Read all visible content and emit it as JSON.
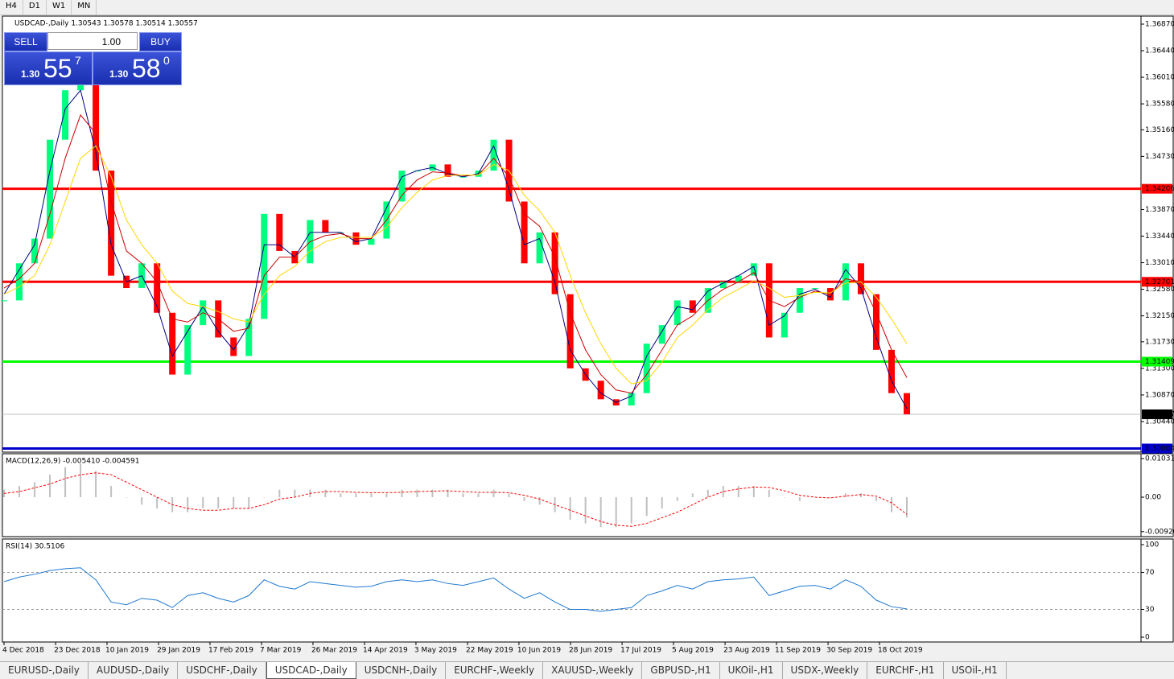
{
  "toolbar": [
    "H4",
    "D1",
    "W1",
    "MN"
  ],
  "trade_panel": {
    "sell": "SELL",
    "buy": "BUY",
    "lots": "1.00",
    "sell_big": "1.30",
    "sell_pips": "55",
    "sell_frac": "7",
    "buy_big": "1.30",
    "buy_pips": "58",
    "buy_frac": "0"
  },
  "tabs": [
    "EURUSD-,Daily",
    "AUDUSD-,Daily",
    "USDCHF-,Daily",
    "USDCAD-,Daily",
    "USDCNH-,Daily",
    "EURCHF-,Weekly",
    "XAUUSD-,Weekly",
    "GBPUSD-,H1",
    "UKOil-,H1",
    "USDX-,Weekly",
    "EURCHF-,H1",
    "USOil-,H1"
  ],
  "active_tab": "USDCAD-,Daily",
  "chart_data": [
    {
      "type": "candlestick",
      "title": "USDCAD-,Daily  1.30543 1.30578 1.30514 1.30557",
      "up_color": "#00ff7f",
      "down_color": "#ff0000",
      "xlim": [
        0,
        59
      ],
      "xticks": [
        {
          "value": 0,
          "label": "4 Dec 2018"
        },
        {
          "value": 3.37,
          "label": "23 Dec 2018"
        },
        {
          "value": 6.73,
          "label": "10 Jan 2019"
        },
        {
          "value": 10.1,
          "label": "29 Jan 2019"
        },
        {
          "value": 13.46,
          "label": "17 Feb 2019"
        },
        {
          "value": 16.83,
          "label": "7 Mar 2019"
        },
        {
          "value": 20.19,
          "label": "26 Mar 2019"
        },
        {
          "value": 23.56,
          "label": "14 Apr 2019"
        },
        {
          "value": 26.92,
          "label": "3 May 2019"
        },
        {
          "value": 30.29,
          "label": "22 May 2019"
        },
        {
          "value": 33.65,
          "label": "10 Jun 2019"
        },
        {
          "value": 37.02,
          "label": "28 Jun 2019"
        },
        {
          "value": 40.39,
          "label": "17 Jul 2019"
        },
        {
          "value": 43.75,
          "label": "5 Aug 2019"
        },
        {
          "value": 47.12,
          "label": "23 Aug 2019"
        },
        {
          "value": 50.48,
          "label": "11 Sep 2019"
        },
        {
          "value": 53.85,
          "label": "30 Sep 2019"
        },
        {
          "value": 57.21,
          "label": "18 Oct 2019"
        }
      ],
      "ylim": [
        1.29945,
        1.37
      ],
      "yticks": [
        {
          "value": 1.3687,
          "label": "1.36870"
        },
        {
          "value": 1.3644,
          "label": "1.36440"
        },
        {
          "value": 1.3601,
          "label": "1.36010"
        },
        {
          "value": 1.3558,
          "label": "1.35580"
        },
        {
          "value": 1.3516,
          "label": "1.35160"
        },
        {
          "value": 1.3473,
          "label": "1.34730"
        },
        {
          "value": 1.3387,
          "label": "1.33870"
        },
        {
          "value": 1.3344,
          "label": "1.33440"
        },
        {
          "value": 1.3301,
          "label": "1.33010"
        },
        {
          "value": 1.3258,
          "label": "1.32580"
        },
        {
          "value": 1.3215,
          "label": "1.32150"
        },
        {
          "value": 1.3173,
          "label": "1.31730"
        },
        {
          "value": 1.313,
          "label": "1.31300"
        },
        {
          "value": 1.3087,
          "label": "1.30870"
        },
        {
          "value": 1.3044,
          "label": "1.30440"
        }
      ],
      "hlines": [
        {
          "value": 1.34206,
          "color": "#ff0000"
        },
        {
          "value": 1.32701,
          "color": "#ff0000"
        },
        {
          "value": 1.31409,
          "color": "#00ff00"
        },
        {
          "value": 1.30004,
          "color": "#0000cc"
        },
        {
          "value": 1.30557,
          "color": "#c0c0c0"
        }
      ],
      "close": [
        1.324,
        1.33,
        1.334,
        1.35,
        1.358,
        1.36,
        1.345,
        1.328,
        1.326,
        1.33,
        1.322,
        1.312,
        1.32,
        1.324,
        1.318,
        1.315,
        1.321,
        1.338,
        1.332,
        1.33,
        1.337,
        1.335,
        1.335,
        1.333,
        1.334,
        1.34,
        1.345,
        1.345,
        1.346,
        1.344,
        1.344,
        1.345,
        1.35,
        1.34,
        1.33,
        1.335,
        1.325,
        1.313,
        1.311,
        1.308,
        1.307,
        1.309,
        1.317,
        1.32,
        1.324,
        1.322,
        1.326,
        1.327,
        1.328,
        1.33,
        1.318,
        1.322,
        1.326,
        1.326,
        1.324,
        1.33,
        1.325,
        1.316,
        1.309,
        1.30557
      ],
      "series": [
        {
          "color": "#000080",
          "values": [
            1.325,
            1.329,
            1.333,
            1.345,
            1.355,
            1.358,
            1.348,
            1.333,
            1.327,
            1.328,
            1.323,
            1.315,
            1.319,
            1.323,
            1.319,
            1.316,
            1.32,
            1.333,
            1.333,
            1.331,
            1.335,
            1.335,
            1.335,
            1.3335,
            1.334,
            1.339,
            1.344,
            1.345,
            1.3455,
            1.3445,
            1.344,
            1.3445,
            1.349,
            1.342,
            1.333,
            1.334,
            1.327,
            1.316,
            1.312,
            1.309,
            1.3075,
            1.3085,
            1.315,
            1.319,
            1.323,
            1.3225,
            1.3255,
            1.3268,
            1.328,
            1.3295,
            1.32,
            1.3215,
            1.325,
            1.3258,
            1.3245,
            1.329,
            1.326,
            1.318,
            1.311,
            1.3065
          ]
        },
        {
          "color": "#cc0000",
          "values": [
            1.326,
            1.3275,
            1.33,
            1.338,
            1.347,
            1.354,
            1.351,
            1.34,
            1.332,
            1.33,
            1.327,
            1.321,
            1.3205,
            1.322,
            1.321,
            1.319,
            1.3195,
            1.328,
            1.331,
            1.331,
            1.3335,
            1.3345,
            1.3348,
            1.334,
            1.334,
            1.337,
            1.341,
            1.3435,
            1.3448,
            1.3446,
            1.3442,
            1.3443,
            1.347,
            1.344,
            1.338,
            1.336,
            1.331,
            1.322,
            1.316,
            1.312,
            1.3095,
            1.309,
            1.312,
            1.316,
            1.32,
            1.3215,
            1.324,
            1.3258,
            1.327,
            1.3285,
            1.324,
            1.323,
            1.3245,
            1.3255,
            1.325,
            1.3275,
            1.327,
            1.322,
            1.316,
            1.3115
          ]
        },
        {
          "color": "#ffd700",
          "values": [
            1.325,
            1.3262,
            1.328,
            1.333,
            1.34,
            1.347,
            1.349,
            1.344,
            1.337,
            1.333,
            1.33,
            1.3255,
            1.3235,
            1.323,
            1.3222,
            1.321,
            1.3205,
            1.325,
            1.328,
            1.3295,
            1.332,
            1.3335,
            1.3342,
            1.3342,
            1.3342,
            1.3358,
            1.339,
            1.3415,
            1.3435,
            1.3442,
            1.3443,
            1.3443,
            1.346,
            1.345,
            1.341,
            1.3385,
            1.335,
            1.328,
            1.322,
            1.317,
            1.313,
            1.3105,
            1.311,
            1.314,
            1.318,
            1.32,
            1.3225,
            1.3245,
            1.3258,
            1.3272,
            1.326,
            1.3245,
            1.3248,
            1.3253,
            1.3252,
            1.3268,
            1.327,
            1.3245,
            1.321,
            1.317
          ]
        }
      ]
    },
    {
      "type": "macd",
      "title": "MACD(12,26,9) -0.005410 -0.004591",
      "ylim": [
        -0.01053,
        0.0116
      ],
      "yticks": [
        0.010311,
        {
          "value": 0,
          "label": "0.00"
        },
        {
          "value": -0.0092,
          "label": "-0.00920"
        }
      ],
      "hist_color": "#c0c0c0",
      "signal_color": "#ff0000",
      "hist": [
        0.002,
        0.003,
        0.004,
        0.006,
        0.008,
        0.009,
        0.007,
        0.003,
        0,
        -0.002,
        -0.003,
        -0.004,
        -0.004,
        -0.003,
        -0.003,
        -0.003,
        -0.003,
        0,
        0.002,
        0.002,
        0.002,
        0.002,
        0.001,
        0.001,
        0.001,
        0.001,
        0.002,
        0.002,
        0.002,
        0.002,
        0.001,
        0.001,
        0.002,
        0.001,
        -0.001,
        -0.002,
        -0.004,
        -0.006,
        -0.007,
        -0.008,
        -0.008,
        -0.007,
        -0.005,
        -0.003,
        -0.001,
        0.001,
        0.002,
        0.003,
        0.003,
        0.003,
        0.002,
        0,
        -0.001,
        0,
        0,
        0.001,
        0.001,
        -0.001,
        -0.004,
        -0.0054
      ],
      "signal": [
        0.001,
        0.0015,
        0.0025,
        0.0035,
        0.005,
        0.006,
        0.0065,
        0.006,
        0.004,
        0.002,
        0,
        -0.002,
        -0.003,
        -0.0035,
        -0.0035,
        -0.003,
        -0.003,
        -0.002,
        -0.0005,
        0,
        0.001,
        0.0015,
        0.0015,
        0.0013,
        0.0012,
        0.0012,
        0.0013,
        0.0015,
        0.0016,
        0.0017,
        0.0015,
        0.0013,
        0.0013,
        0.0012,
        0.0005,
        -0.0005,
        -0.002,
        -0.0035,
        -0.005,
        -0.0065,
        -0.0075,
        -0.0078,
        -0.007,
        -0.0055,
        -0.004,
        -0.002,
        0,
        0.0015,
        0.0022,
        0.0027,
        0.0026,
        0.0017,
        0.0005,
        0,
        -0.0002,
        0.0003,
        0.0007,
        0.0003,
        -0.0015,
        -0.0046
      ]
    },
    {
      "type": "rsi",
      "title": "RSI(14) 30.5106",
      "color": "#1e78d0",
      "ylim": [
        -5.2,
        106.1
      ],
      "yticks": [
        100,
        70,
        30,
        0
      ],
      "levels": [
        70,
        30
      ],
      "values": [
        60,
        65,
        68,
        72,
        74,
        75,
        62,
        38,
        35,
        42,
        40,
        32,
        45,
        48,
        42,
        38,
        45,
        62,
        55,
        52,
        60,
        58,
        56,
        54,
        55,
        60,
        62,
        60,
        62,
        58,
        56,
        60,
        64,
        52,
        42,
        48,
        38,
        30,
        30,
        28,
        30,
        32,
        45,
        50,
        56,
        52,
        60,
        62,
        63,
        65,
        45,
        50,
        55,
        56,
        52,
        62,
        55,
        40,
        33,
        30.5106
      ]
    }
  ]
}
